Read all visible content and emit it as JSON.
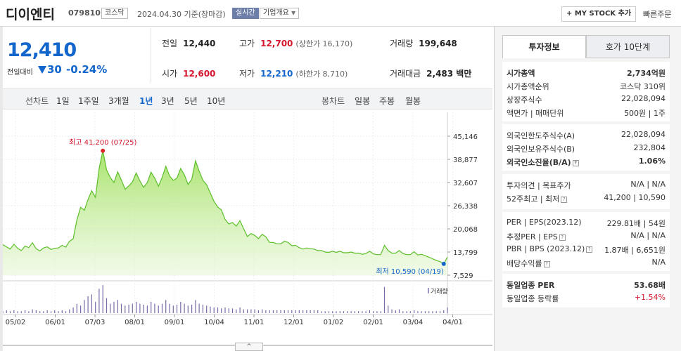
{
  "header": {
    "company": "디이엔티",
    "code": "079810",
    "market": "코스닥",
    "date_text": "2024.04.30 기준(장마감)",
    "live_badge": "실시간",
    "company_info": "기업개요",
    "mystock_btn": "+ MY STOCK 추가",
    "quick_order": "빠른주문"
  },
  "price": {
    "current": "12,410",
    "change_label": "전일대비",
    "change_value": "30",
    "change_pct": "-0.24%"
  },
  "stats": {
    "prev_close_k": "전일",
    "prev_close_v": "12,440",
    "high_k": "고가",
    "high_v": "12,700",
    "upper_limit": "(상한가 16,170)",
    "volume_k": "거래량",
    "volume_v": "199,648",
    "open_k": "시가",
    "open_v": "12,600",
    "low_k": "저가",
    "low_v": "12,210",
    "lower_limit": "(하한가 8,710)",
    "amount_k": "거래대금",
    "amount_v": "2,483 백만"
  },
  "period": {
    "line_label": "선차트",
    "items": [
      "1일",
      "1주일",
      "3개월",
      "1년",
      "3년",
      "5년",
      "10년"
    ],
    "selected": "1년",
    "candle_label": "봉차트",
    "candle_items": [
      "일봉",
      "주봉",
      "월봉"
    ]
  },
  "chart_data": {
    "type": "area",
    "yticks": [
      "45,146",
      "38,877",
      "32,607",
      "26,338",
      "20,068",
      "13,799",
      "7,529"
    ],
    "ylim": [
      7529,
      45146
    ],
    "xticks": [
      "05/02",
      "06/01",
      "07/03",
      "08/01",
      "09/01",
      "10/04",
      "11/01",
      "12/01",
      "01/02",
      "02/01",
      "03/04",
      "04/01"
    ],
    "max_label": "최고 41,200 (07/25)",
    "min_label": "최저 10,590 (04/19)",
    "volume_label": "거래량",
    "x": [
      0,
      2,
      4,
      6,
      8,
      10,
      12,
      14,
      16,
      18,
      20,
      22,
      24,
      26,
      28,
      30,
      32,
      34,
      36,
      38,
      40,
      42,
      44,
      46,
      48,
      50,
      52,
      54,
      56,
      58,
      60,
      62,
      64,
      66,
      68,
      70,
      72,
      74,
      76,
      78,
      80,
      82,
      84,
      86,
      88,
      90,
      92,
      94,
      96,
      98,
      100,
      102,
      104,
      106,
      108,
      110,
      112,
      114,
      116,
      118,
      120,
      122,
      124,
      126,
      128,
      130,
      132,
      134,
      136,
      138,
      140,
      142,
      144,
      146,
      148,
      150,
      152,
      154,
      156,
      158,
      160,
      162,
      164,
      166,
      168,
      170,
      172,
      174,
      176,
      178,
      180,
      182,
      184,
      186,
      188,
      190,
      192,
      194,
      196,
      198,
      200,
      202,
      204,
      206,
      208,
      210,
      212,
      214,
      216,
      218,
      220,
      222,
      224,
      226,
      228,
      230,
      232,
      234,
      236,
      238,
      240
    ],
    "values": [
      15800,
      15200,
      14600,
      15900,
      14800,
      14200,
      15400,
      15000,
      16300,
      14700,
      14100,
      14900,
      15200,
      14500,
      14800,
      14900,
      15600,
      15100,
      16700,
      17400,
      22500,
      25900,
      25100,
      28000,
      30400,
      28600,
      36400,
      41200,
      36000,
      34000,
      32600,
      35500,
      33300,
      30800,
      31700,
      32800,
      35200,
      33000,
      31300,
      32600,
      35400,
      33800,
      31600,
      34000,
      37000,
      34400,
      33200,
      33800,
      36400,
      34700,
      32100,
      33500,
      38500,
      35700,
      33200,
      32000,
      29800,
      27500,
      26000,
      25200,
      22600,
      21400,
      21800,
      20800,
      22300,
      20100,
      18000,
      18800,
      18300,
      17400,
      18600,
      17900,
      16400,
      16400,
      16000,
      16000,
      16700,
      16400,
      15500,
      15600,
      15000,
      14600,
      14900,
      14700,
      14600,
      14200,
      14200,
      13800,
      13700,
      14000,
      13700,
      14000,
      13600,
      13600,
      13800,
      13500,
      13500,
      13200,
      13400,
      14000,
      13300,
      13100,
      13100,
      15600,
      14200,
      13500,
      13500,
      14200,
      13400,
      13100,
      13100,
      13900,
      13000,
      13200,
      12800,
      12400,
      12000,
      11500,
      11200,
      10590,
      12410
    ],
    "volumes": [
      2,
      3,
      2,
      3,
      2,
      2,
      3,
      2,
      4,
      3,
      2,
      2,
      3,
      2,
      3,
      2,
      3,
      2,
      4,
      6,
      10,
      8,
      14,
      18,
      20,
      12,
      26,
      30,
      16,
      10,
      12,
      14,
      10,
      8,
      9,
      10,
      12,
      10,
      9,
      8,
      12,
      10,
      8,
      10,
      14,
      10,
      8,
      9,
      12,
      10,
      8,
      9,
      14,
      10,
      9,
      8,
      7,
      6,
      6,
      5,
      6,
      5,
      5,
      4,
      6,
      4,
      4,
      4,
      4,
      3,
      4,
      3,
      3,
      3,
      3,
      3,
      3,
      3,
      3,
      3,
      3,
      3,
      3,
      3,
      3,
      3,
      2,
      2,
      2,
      2,
      2,
      2,
      2,
      2,
      2,
      2,
      2,
      2,
      2,
      3,
      2,
      2,
      2,
      28,
      8,
      4,
      3,
      4,
      2,
      2,
      2,
      3,
      2,
      2,
      2,
      2,
      2,
      2,
      2,
      3,
      6
    ]
  },
  "right_panel": {
    "tab_invest": "투자정보",
    "tab_ask": "호가 10단계",
    "g1": [
      {
        "k": "시가총액",
        "v": "2,734억원",
        "bold": true
      },
      {
        "k": "시가총액순위",
        "v": "코스닥 310위"
      },
      {
        "k": "상장주식수",
        "v": "22,028,094"
      },
      {
        "k": "액면가 | 매매단위",
        "v": "500원 | 1주"
      }
    ],
    "g2": [
      {
        "k": "외국인한도주식수(A)",
        "v": "22,028,094"
      },
      {
        "k": "외국인보유주식수(B)",
        "v": "232,804"
      },
      {
        "k": "외국인소진율(B/A)",
        "v": "1.06%",
        "bold": true
      }
    ],
    "g3": [
      {
        "k": "투자의견 | 목표주가",
        "v": "N/A | N/A"
      },
      {
        "k": "52주최고 | 최저",
        "v": "41,200 | 10,590"
      }
    ],
    "g4": [
      {
        "k": "PER | EPS(2023.12)",
        "v": "229.81배 | 54원"
      },
      {
        "k": "추정PER | EPS",
        "v": "N/A | N/A"
      },
      {
        "k": "PBR | BPS (2023.12)",
        "v": "1.87배 | 6,651원"
      },
      {
        "k": "배당수익률",
        "v": "N/A"
      }
    ],
    "g5": [
      {
        "k": "동일업종 PER",
        "v": "53.68배",
        "bold": true
      },
      {
        "k": "동일업종 등락률",
        "v": "+1.54%",
        "red": true
      }
    ]
  },
  "scroll_label": "^"
}
